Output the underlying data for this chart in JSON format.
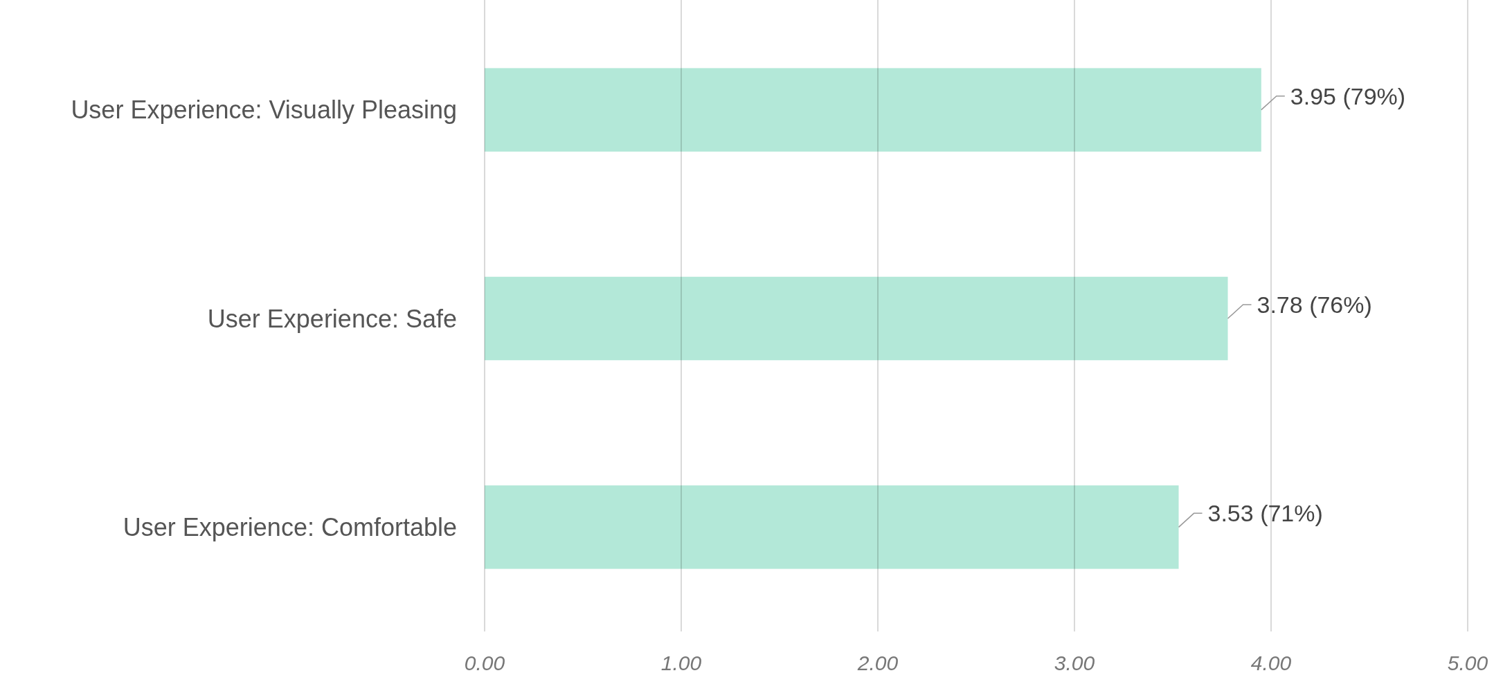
{
  "chart_data": {
    "type": "bar",
    "orientation": "horizontal",
    "categories": [
      "User Experience: Visually Pleasing",
      "User Experience: Safe",
      "User Experience: Comfortable"
    ],
    "values": [
      3.95,
      3.78,
      3.53
    ],
    "value_labels": [
      "3.95 (79%)",
      "3.78 (76%)",
      "3.53 (71%)"
    ],
    "color": "#b3e8d8",
    "xlim": [
      0,
      5
    ],
    "xticks": [
      {
        "value": 0,
        "label": "0.00"
      },
      {
        "value": 1,
        "label": "1.00"
      },
      {
        "value": 2,
        "label": "2.00"
      },
      {
        "value": 3,
        "label": "3.00"
      },
      {
        "value": 4,
        "label": "4.00"
      },
      {
        "value": 5,
        "label": "5.00"
      }
    ],
    "grid": "x"
  }
}
